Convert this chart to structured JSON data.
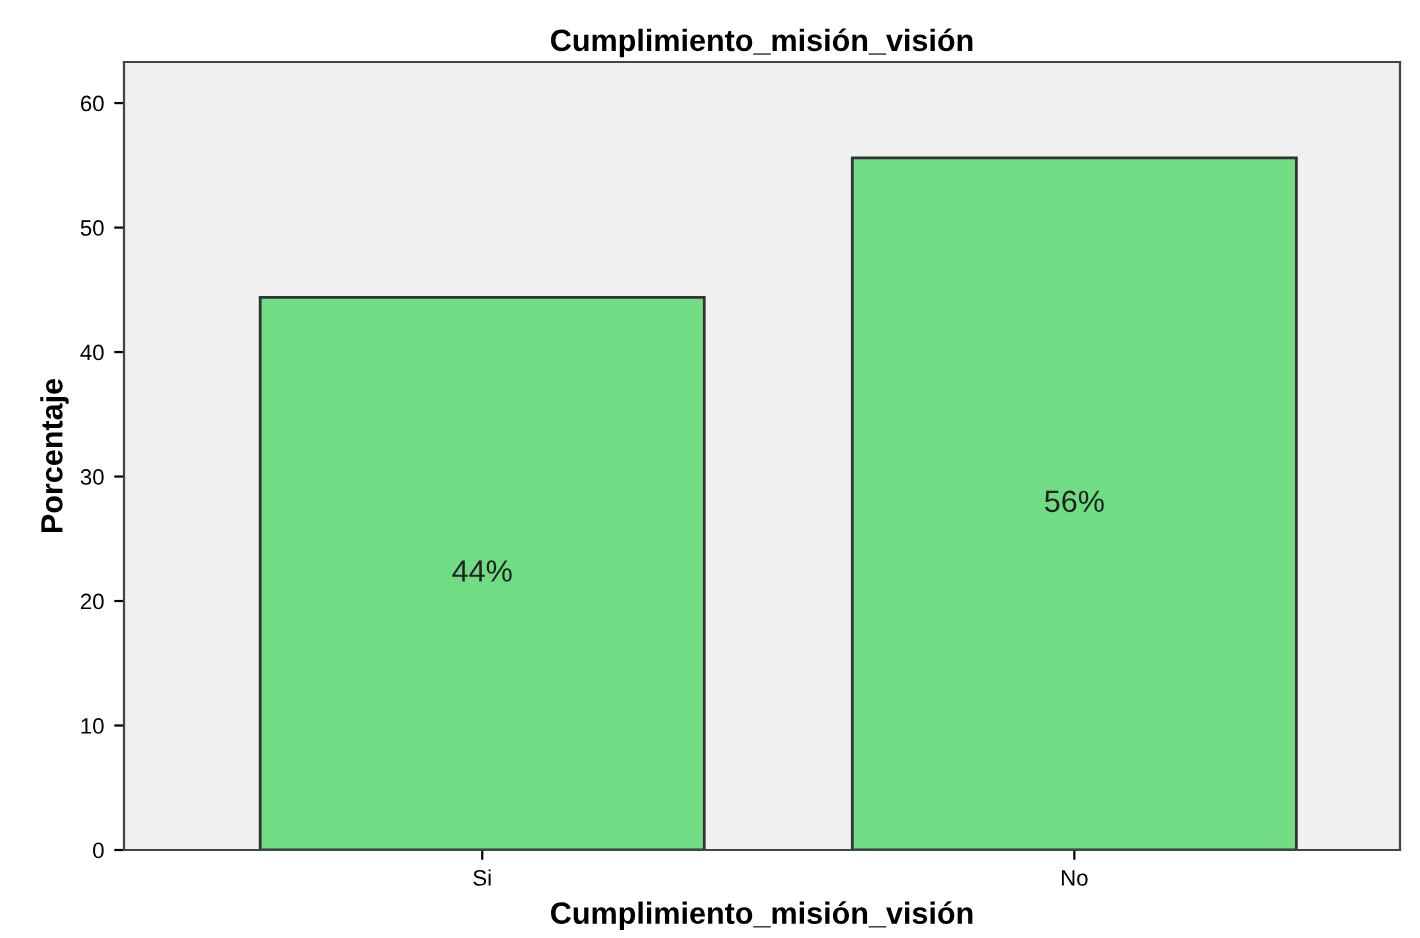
{
  "chart_data": {
    "type": "bar",
    "title": "Cumplimiento_misión_visión",
    "xlabel": "Cumplimiento_misión_visión",
    "ylabel": "Porcentaje",
    "categories": [
      "Si",
      "No"
    ],
    "values": [
      44.4,
      55.6
    ],
    "value_labels": [
      "44%",
      "56%"
    ],
    "color": "#70dc84",
    "ylim": [
      0,
      63.3
    ],
    "yticks": [
      0,
      10,
      20,
      30,
      40,
      50,
      60
    ],
    "grid": false
  }
}
